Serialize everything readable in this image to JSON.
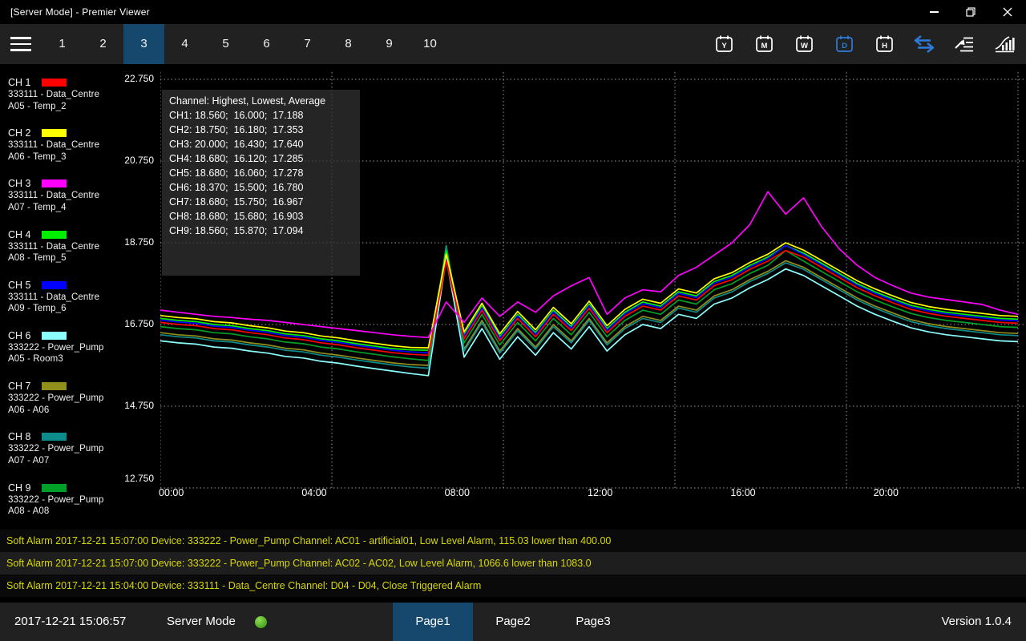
{
  "colors": {
    "accent_blue": "#15486c",
    "icon_blue": "#2e7bdb",
    "alarm_yellow": "#d8d800",
    "status_green": "#5abf28",
    "grid": "#9a9a9a"
  },
  "titlebar": {
    "title": "[Server Mode] - Premier Viewer"
  },
  "toolbar": {
    "page_tabs": [
      "1",
      "2",
      "3",
      "4",
      "5",
      "6",
      "7",
      "8",
      "9",
      "10"
    ],
    "active_page_tab": "3",
    "calendar_buttons": [
      {
        "label": "Y",
        "active": false
      },
      {
        "label": "M",
        "active": false
      },
      {
        "label": "W",
        "active": false
      },
      {
        "label": "D",
        "active": true
      },
      {
        "label": "H",
        "active": false
      }
    ],
    "right_icons": [
      "sync-icon",
      "report-export-icon",
      "statistics-icon"
    ]
  },
  "channels": [
    {
      "id": "CH 1",
      "color": "#ff0000",
      "device": "333111 - Data_Centre",
      "point": "A05 - Temp_2"
    },
    {
      "id": "CH 2",
      "color": "#ffff00",
      "device": "333111 - Data_Centre",
      "point": "A06 - Temp_3"
    },
    {
      "id": "CH 3",
      "color": "#ff00ff",
      "device": "333111 - Data_Centre",
      "point": "A07 - Temp_4"
    },
    {
      "id": "CH 4",
      "color": "#00f000",
      "device": "333111 - Data_Centre",
      "point": "A08 - Temp_5"
    },
    {
      "id": "CH 5",
      "color": "#0000ff",
      "device": "333111 - Data_Centre",
      "point": "A09 - Temp_6"
    },
    {
      "id": "CH 6",
      "color": "#8cffff",
      "device": "333222 - Power_Pump",
      "point": "A05 - Room3"
    },
    {
      "id": "CH 7",
      "color": "#908f1c",
      "device": "333222 - Power_Pump",
      "point": "A06 - A06"
    },
    {
      "id": "CH 8",
      "color": "#0d8c8c",
      "device": "333222 - Power_Pump",
      "point": "A07 - A07"
    },
    {
      "id": "CH 9",
      "color": "#00a028",
      "device": "333222 - Power_Pump",
      "point": "A08 - A08"
    }
  ],
  "overlay": {
    "title": "Channel: Highest, Lowest, Average",
    "rows": [
      {
        "channel": "CH1",
        "highest": "18.560",
        "lowest": "16.000",
        "average": "17.188"
      },
      {
        "channel": "CH2",
        "highest": "18.750",
        "lowest": "16.180",
        "average": "17.353"
      },
      {
        "channel": "CH3",
        "highest": "20.000",
        "lowest": "16.430",
        "average": "17.640"
      },
      {
        "channel": "CH4",
        "highest": "18.680",
        "lowest": "16.120",
        "average": "17.285"
      },
      {
        "channel": "CH5",
        "highest": "18.680",
        "lowest": "16.060",
        "average": "17.278"
      },
      {
        "channel": "CH6",
        "highest": "18.370",
        "lowest": "15.500",
        "average": "16.780"
      },
      {
        "channel": "CH7",
        "highest": "18.680",
        "lowest": "15.750",
        "average": "16.967"
      },
      {
        "channel": "CH8",
        "highest": "18.680",
        "lowest": "15.680",
        "average": "16.903"
      },
      {
        "channel": "CH9",
        "highest": "18.560",
        "lowest": "15.870",
        "average": "17.094"
      }
    ]
  },
  "chart_data": {
    "type": "line",
    "ylim": [
      12.75,
      22.75
    ],
    "y_ticks": [
      {
        "value": 22.75,
        "label": "22.750"
      },
      {
        "value": 20.75,
        "label": "20.750"
      },
      {
        "value": 18.75,
        "label": "18.750"
      },
      {
        "value": 16.75,
        "label": "16.750"
      },
      {
        "value": 14.75,
        "label": "14.750"
      },
      {
        "value": 12.75,
        "label": "12.750"
      }
    ],
    "x_range_hours": [
      0,
      24
    ],
    "x_ticks": [
      {
        "hour": 0,
        "label": "00:00"
      },
      {
        "hour": 4,
        "label": "04:00"
      },
      {
        "hour": 8,
        "label": "08:00"
      },
      {
        "hour": 12,
        "label": "12:00"
      },
      {
        "hour": 16,
        "label": "16:00"
      },
      {
        "hour": 20,
        "label": "20:00"
      }
    ],
    "grid_divisions": 5,
    "sample_interval_hours": 0.5,
    "series": [
      {
        "name": "CH1",
        "color": "#ff0000",
        "values": [
          16.8,
          16.75,
          16.72,
          16.65,
          16.62,
          16.55,
          16.5,
          16.42,
          16.38,
          16.3,
          16.25,
          16.18,
          16.12,
          16.06,
          16.02,
          16.0,
          18.3,
          16.4,
          17.1,
          16.35,
          16.9,
          16.45,
          17.0,
          16.6,
          17.15,
          16.55,
          16.95,
          17.2,
          17.1,
          17.45,
          17.35,
          17.7,
          17.85,
          18.1,
          18.3,
          18.56,
          18.4,
          18.15,
          17.9,
          17.65,
          17.45,
          17.28,
          17.12,
          17.02,
          16.95,
          16.9,
          16.85,
          16.8,
          16.78
        ]
      },
      {
        "name": "CH2",
        "color": "#ffff00",
        "values": [
          16.97,
          16.92,
          16.89,
          16.82,
          16.79,
          16.72,
          16.67,
          16.59,
          16.55,
          16.47,
          16.42,
          16.35,
          16.29,
          16.23,
          16.19,
          16.18,
          18.47,
          16.57,
          17.27,
          16.52,
          17.07,
          16.62,
          17.17,
          16.77,
          17.32,
          16.72,
          17.12,
          17.37,
          17.27,
          17.62,
          17.52,
          17.87,
          18.02,
          18.27,
          18.47,
          18.75,
          18.57,
          18.32,
          18.07,
          17.82,
          17.62,
          17.45,
          17.29,
          17.19,
          17.12,
          17.07,
          17.02,
          16.97,
          16.95
        ]
      },
      {
        "name": "CH3",
        "color": "#ff00ff",
        "values": [
          17.1,
          17.05,
          17.0,
          16.95,
          16.92,
          16.88,
          16.85,
          16.8,
          16.75,
          16.7,
          16.65,
          16.6,
          16.55,
          16.5,
          16.46,
          16.43,
          17.3,
          16.8,
          17.4,
          16.95,
          17.3,
          17.05,
          17.45,
          17.7,
          17.9,
          17.0,
          17.4,
          17.6,
          17.55,
          17.95,
          18.15,
          18.45,
          18.75,
          19.2,
          20.0,
          19.45,
          19.85,
          19.15,
          18.6,
          18.2,
          17.9,
          17.7,
          17.52,
          17.42,
          17.36,
          17.3,
          17.24,
          17.1,
          17.0
        ]
      },
      {
        "name": "CH4",
        "color": "#00f000",
        "values": [
          16.9,
          16.85,
          16.82,
          16.75,
          16.72,
          16.65,
          16.6,
          16.52,
          16.48,
          16.4,
          16.35,
          16.28,
          16.22,
          16.16,
          16.13,
          16.12,
          18.55,
          16.5,
          17.2,
          16.45,
          17.0,
          16.55,
          17.1,
          16.7,
          17.25,
          16.65,
          17.05,
          17.3,
          17.2,
          17.55,
          17.45,
          17.8,
          17.95,
          18.2,
          18.4,
          18.68,
          18.5,
          18.25,
          18.0,
          17.75,
          17.55,
          17.38,
          17.22,
          17.12,
          17.05,
          17.0,
          16.95,
          16.9,
          16.88
        ]
      },
      {
        "name": "CH5",
        "color": "#0000ff",
        "values": [
          16.86,
          16.81,
          16.78,
          16.71,
          16.68,
          16.61,
          16.56,
          16.48,
          16.44,
          16.36,
          16.31,
          16.24,
          16.18,
          16.12,
          16.08,
          16.06,
          18.42,
          16.46,
          17.16,
          16.41,
          16.96,
          16.51,
          17.06,
          16.66,
          17.21,
          16.61,
          17.01,
          17.26,
          17.16,
          17.51,
          17.41,
          17.76,
          17.91,
          18.16,
          18.36,
          18.68,
          18.46,
          18.21,
          17.96,
          17.71,
          17.51,
          17.34,
          17.18,
          17.08,
          17.01,
          16.96,
          16.91,
          16.86,
          16.84
        ]
      },
      {
        "name": "CH6",
        "color": "#8cffff",
        "values": [
          16.35,
          16.3,
          16.27,
          16.2,
          16.17,
          16.1,
          16.05,
          15.97,
          15.93,
          15.85,
          15.8,
          15.73,
          15.67,
          15.61,
          15.55,
          15.5,
          18.37,
          15.95,
          16.65,
          15.9,
          16.45,
          16.0,
          16.55,
          16.15,
          16.7,
          16.1,
          16.5,
          16.75,
          16.65,
          17.0,
          16.9,
          17.25,
          17.4,
          17.65,
          17.85,
          18.11,
          17.95,
          17.7,
          17.45,
          17.2,
          17.0,
          16.83,
          16.67,
          16.57,
          16.5,
          16.45,
          16.4,
          16.35,
          16.33
        ]
      },
      {
        "name": "CH7",
        "color": "#908f1c",
        "values": [
          16.55,
          16.5,
          16.47,
          16.4,
          16.37,
          16.3,
          16.25,
          16.17,
          16.13,
          16.05,
          16.0,
          15.93,
          15.87,
          15.81,
          15.77,
          15.75,
          18.68,
          16.15,
          16.85,
          16.1,
          16.65,
          16.2,
          16.75,
          16.35,
          16.9,
          16.3,
          16.7,
          16.95,
          16.85,
          17.2,
          17.1,
          17.45,
          17.6,
          17.85,
          18.05,
          18.31,
          18.15,
          17.9,
          17.65,
          17.4,
          17.2,
          17.03,
          16.87,
          16.77,
          16.7,
          16.65,
          16.6,
          16.55,
          16.53
        ]
      },
      {
        "name": "CH8",
        "color": "#0d8c8c",
        "values": [
          16.5,
          16.45,
          16.42,
          16.35,
          16.32,
          16.25,
          16.2,
          16.12,
          16.08,
          16.0,
          15.95,
          15.88,
          15.82,
          15.76,
          15.71,
          15.68,
          18.68,
          16.1,
          16.8,
          16.05,
          16.6,
          16.15,
          16.7,
          16.3,
          16.85,
          16.25,
          16.65,
          16.9,
          16.8,
          17.15,
          17.05,
          17.4,
          17.55,
          17.8,
          18.0,
          18.26,
          18.1,
          17.85,
          17.6,
          17.35,
          17.15,
          16.98,
          16.82,
          16.72,
          16.65,
          16.6,
          16.55,
          16.5,
          16.48
        ]
      },
      {
        "name": "CH9",
        "color": "#00a028",
        "values": [
          16.7,
          16.65,
          16.62,
          16.55,
          16.52,
          16.45,
          16.4,
          16.32,
          16.28,
          16.2,
          16.15,
          16.08,
          16.02,
          15.96,
          15.91,
          15.87,
          18.45,
          16.3,
          17.0,
          16.25,
          16.8,
          16.35,
          16.9,
          16.5,
          17.05,
          16.45,
          16.85,
          17.1,
          17.0,
          17.35,
          17.25,
          17.6,
          17.75,
          18.0,
          18.2,
          18.56,
          18.3,
          18.05,
          17.8,
          17.55,
          17.35,
          17.18,
          17.02,
          16.92,
          16.85,
          16.8,
          16.75,
          16.7,
          16.68
        ]
      }
    ]
  },
  "alarms": [
    {
      "text": "Soft Alarm 2017-12-21 15:07:00 Device: 333222 - Power_Pump Channel: AC01 - artificial01, Low Level Alarm, 115.03 lower than 400.00"
    },
    {
      "text": "Soft Alarm 2017-12-21 15:07:00 Device: 333222 - Power_Pump Channel: AC02 - AC02, Low Level Alarm, 1066.6 lower than 1083.0"
    },
    {
      "text": "Soft Alarm 2017-12-21 15:04:00 Device: 333111 - Data_Centre Channel: D04 - D04, Close Triggered Alarm"
    }
  ],
  "statusbar": {
    "timestamp": "2017-12-21 15:06:57",
    "mode_label": "Server Mode",
    "pages": [
      "Page1",
      "Page2",
      "Page3"
    ],
    "active_page": "Page1",
    "version": "Version 1.0.4"
  }
}
